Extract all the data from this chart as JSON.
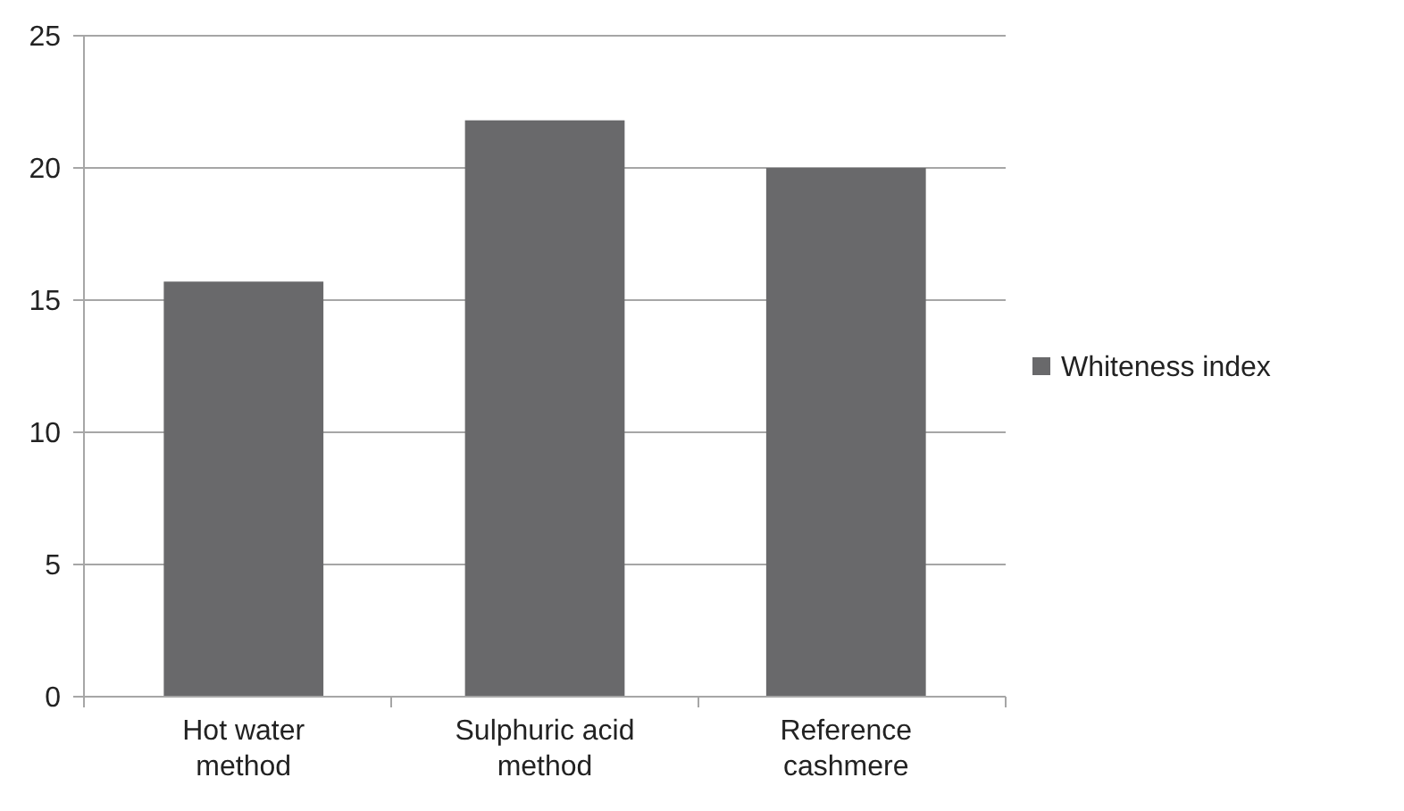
{
  "chart_data": {
    "type": "bar",
    "categories": [
      "Hot water method",
      "Sulphuric acid method",
      "Reference cashmere"
    ],
    "series": [
      {
        "name": "Whiteness index",
        "color": "#69696b",
        "values": [
          15.7,
          21.8,
          20.0
        ]
      }
    ],
    "ylim": [
      0,
      25
    ],
    "yticks": [
      0,
      5,
      10,
      15,
      20,
      25
    ],
    "grid": "y",
    "legend": "right"
  }
}
